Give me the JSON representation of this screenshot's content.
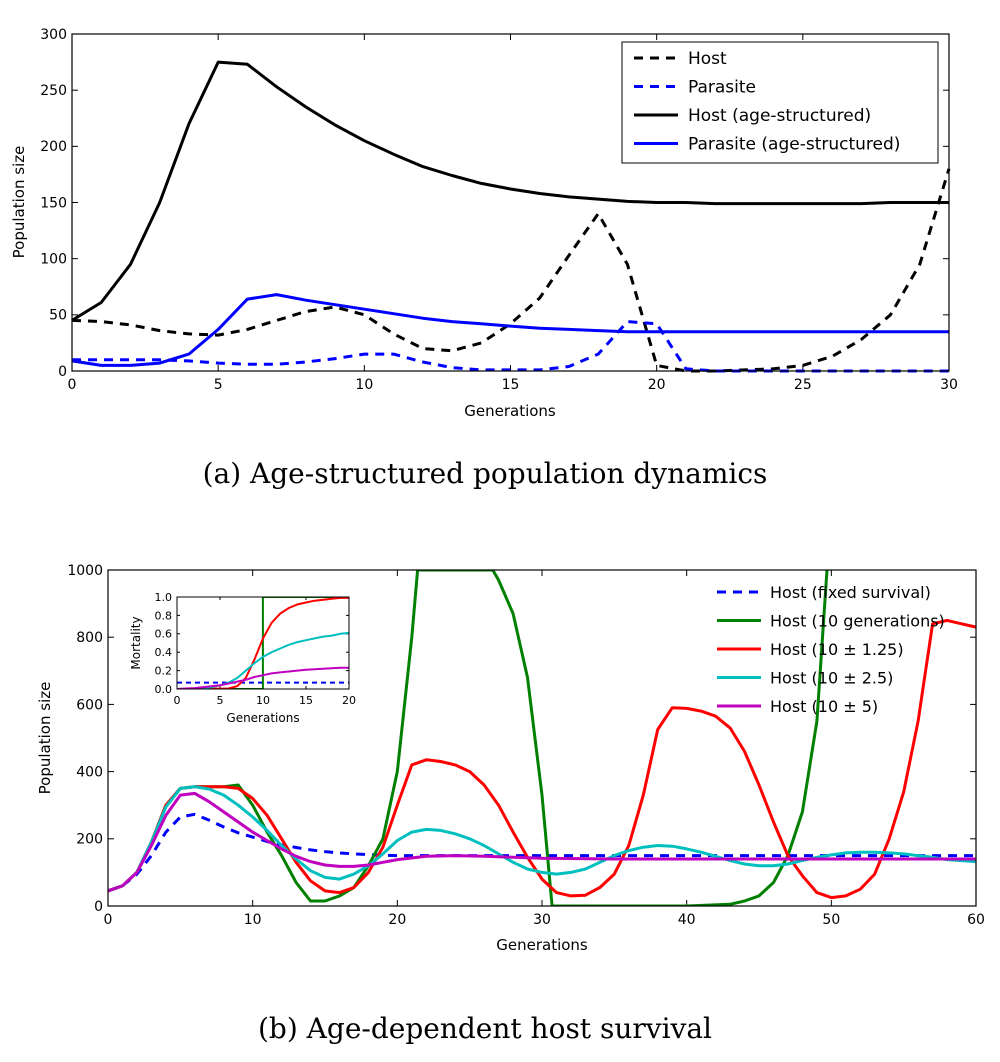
{
  "chart_data": [
    {
      "id": "a",
      "type": "line",
      "caption": "(a) Age-structured population dynamics",
      "xlabel": "Generations",
      "ylabel": "Population size",
      "xlim": [
        0,
        30
      ],
      "ylim": [
        0,
        300
      ],
      "xticks": [
        "0",
        "5",
        "10",
        "15",
        "20",
        "25",
        "30"
      ],
      "yticks": [
        "0",
        "50",
        "100",
        "150",
        "200",
        "250",
        "300"
      ],
      "legend_position": "top-right",
      "series": [
        {
          "name": "Host",
          "color": "#000000",
          "style": "dashed",
          "x": [
            0,
            1,
            2,
            3,
            4,
            5,
            6,
            7,
            8,
            9,
            10,
            11,
            12,
            13,
            14,
            15,
            16,
            17,
            18,
            19,
            20,
            21,
            22,
            23,
            24,
            25,
            26,
            27,
            28,
            29,
            30
          ],
          "y": [
            45,
            44,
            41,
            36,
            33,
            32,
            37,
            45,
            53,
            57,
            50,
            33,
            20,
            18,
            25,
            42,
            65,
            103,
            140,
            95,
            5,
            0,
            0,
            1,
            2,
            5,
            13,
            28,
            50,
            95,
            180
          ]
        },
        {
          "name": "Parasite",
          "color": "#0000ff",
          "style": "dashed",
          "x": [
            0,
            1,
            2,
            3,
            4,
            5,
            6,
            7,
            8,
            9,
            10,
            11,
            12,
            13,
            14,
            15,
            16,
            17,
            18,
            19,
            20,
            21,
            22,
            23,
            24,
            25,
            26,
            27,
            28,
            29,
            30
          ],
          "y": [
            10,
            10,
            10,
            10,
            9,
            7,
            6,
            6,
            8,
            11,
            15,
            15,
            8,
            3,
            1,
            1,
            1,
            4,
            15,
            44,
            42,
            2,
            0,
            0,
            0,
            0,
            0,
            0,
            0,
            0,
            0
          ]
        },
        {
          "name": "Host (age-structured)",
          "color": "#000000",
          "style": "solid",
          "x": [
            0,
            1,
            2,
            3,
            4,
            5,
            6,
            7,
            8,
            9,
            10,
            11,
            12,
            13,
            14,
            15,
            16,
            17,
            18,
            19,
            20,
            21,
            22,
            23,
            24,
            25,
            26,
            27,
            28,
            29,
            30
          ],
          "y": [
            45,
            61,
            95,
            150,
            220,
            275,
            273,
            253,
            235,
            219,
            205,
            193,
            182,
            174,
            167,
            162,
            158,
            155,
            153,
            151,
            150,
            150,
            149,
            149,
            149,
            149,
            149,
            149,
            150,
            150,
            150
          ]
        },
        {
          "name": "Parasite (age-structured)",
          "color": "#0000ff",
          "style": "solid",
          "x": [
            0,
            1,
            2,
            3,
            4,
            5,
            6,
            7,
            8,
            9,
            10,
            11,
            12,
            13,
            14,
            15,
            16,
            17,
            18,
            19,
            20,
            21,
            22,
            23,
            24,
            25,
            26,
            27,
            28,
            29,
            30
          ],
          "y": [
            9,
            5,
            5,
            7,
            15,
            37,
            64,
            68,
            63,
            59,
            55,
            51,
            47,
            44,
            42,
            40,
            38,
            37,
            36,
            35,
            35,
            35,
            35,
            35,
            35,
            35,
            35,
            35,
            35,
            35,
            35
          ]
        }
      ]
    },
    {
      "id": "b",
      "type": "line",
      "caption": "(b) Age-dependent host survival",
      "xlabel": "Generations",
      "ylabel": "Population size",
      "xlim": [
        0,
        60
      ],
      "ylim": [
        0,
        1000
      ],
      "xticks": [
        "0",
        "10",
        "20",
        "30",
        "40",
        "50",
        "60"
      ],
      "yticks": [
        "0",
        "200",
        "400",
        "600",
        "800",
        "1000"
      ],
      "legend_position": "top-right",
      "series": [
        {
          "name": "Host (fixed survival)",
          "color": "#0000ff",
          "style": "dashed",
          "x": [
            0,
            1,
            2,
            3,
            4,
            5,
            6,
            7,
            8,
            9,
            10,
            11,
            12,
            13,
            14,
            15,
            16,
            17,
            18,
            19,
            20,
            22,
            24,
            26,
            28,
            30,
            35,
            40,
            45,
            50,
            55,
            60
          ],
          "y": [
            45,
            60,
            95,
            150,
            220,
            265,
            273,
            255,
            235,
            218,
            205,
            192,
            182,
            174,
            167,
            162,
            158,
            155,
            153,
            151,
            150,
            150,
            150,
            150,
            150,
            150,
            150,
            150,
            150,
            150,
            150,
            150
          ]
        },
        {
          "name": "Host (10 generations)",
          "color": "#008000",
          "style": "solid",
          "x": [
            0,
            1,
            2,
            3,
            4,
            5,
            6,
            7,
            8,
            9,
            10,
            11,
            12,
            13,
            14,
            15,
            16,
            17,
            18,
            19,
            20,
            21,
            21.4,
            26.6,
            27,
            28,
            29,
            30,
            30.7,
            31,
            40,
            43,
            44,
            45,
            46,
            47,
            48,
            49,
            49.7
          ],
          "y": [
            45,
            60,
            100,
            190,
            300,
            350,
            355,
            355,
            355,
            360,
            300,
            220,
            150,
            70,
            15,
            15,
            30,
            55,
            120,
            200,
            400,
            800,
            1000,
            1000,
            970,
            870,
            680,
            330,
            0,
            0,
            0,
            5,
            15,
            30,
            70,
            150,
            280,
            550,
            1000
          ]
        },
        {
          "name": "Host (10 ± 1.25)",
          "color": "#ff0000",
          "style": "solid",
          "x": [
            0,
            1,
            2,
            3,
            4,
            5,
            6,
            7,
            8,
            9,
            10,
            11,
            12,
            13,
            14,
            15,
            16,
            17,
            18,
            19,
            20,
            21,
            22,
            23,
            24,
            25,
            26,
            27,
            28,
            29,
            30,
            31,
            32,
            33,
            34,
            35,
            36,
            37,
            38,
            39,
            40,
            41,
            42,
            43,
            44,
            45,
            46,
            47,
            48,
            49,
            50,
            51,
            52,
            53,
            54,
            55,
            56,
            57,
            58,
            59,
            60
          ],
          "y": [
            45,
            60,
            100,
            190,
            300,
            350,
            355,
            355,
            355,
            350,
            320,
            270,
            200,
            130,
            75,
            45,
            40,
            55,
            100,
            175,
            300,
            420,
            435,
            430,
            420,
            400,
            360,
            300,
            220,
            145,
            80,
            40,
            30,
            32,
            55,
            95,
            180,
            330,
            525,
            590,
            588,
            580,
            565,
            530,
            460,
            360,
            250,
            150,
            90,
            40,
            25,
            30,
            50,
            95,
            200,
            340,
            550,
            840,
            850,
            840,
            830
          ]
        },
        {
          "name": "Host (10 ± 2.5)",
          "color": "#00bfbf",
          "style": "solid",
          "x": [
            0,
            1,
            2,
            3,
            4,
            5,
            6,
            7,
            8,
            9,
            10,
            11,
            12,
            13,
            14,
            15,
            16,
            17,
            18,
            19,
            20,
            21,
            22,
            23,
            24,
            25,
            26,
            27,
            28,
            29,
            30,
            31,
            32,
            33,
            34,
            35,
            36,
            37,
            38,
            39,
            40,
            41,
            42,
            43,
            44,
            45,
            46,
            47,
            48,
            49,
            50,
            51,
            52,
            53,
            54,
            55,
            56,
            57,
            58,
            59,
            60
          ],
          "y": [
            45,
            60,
            100,
            190,
            295,
            350,
            355,
            348,
            330,
            300,
            265,
            225,
            180,
            140,
            105,
            85,
            80,
            95,
            120,
            155,
            195,
            220,
            228,
            225,
            215,
            200,
            180,
            155,
            130,
            110,
            100,
            95,
            100,
            110,
            130,
            150,
            165,
            175,
            180,
            178,
            170,
            160,
            148,
            135,
            125,
            120,
            120,
            125,
            135,
            145,
            152,
            158,
            160,
            160,
            158,
            155,
            150,
            145,
            138,
            135,
            132
          ]
        },
        {
          "name": "Host (10 ± 5)",
          "color": "#bf00bf",
          "style": "solid",
          "x": [
            0,
            1,
            2,
            3,
            4,
            5,
            6,
            7,
            8,
            9,
            10,
            11,
            12,
            13,
            14,
            15,
            16,
            17,
            18,
            19,
            20,
            22,
            24,
            26,
            28,
            30,
            35,
            40,
            45,
            50,
            55,
            60
          ],
          "y": [
            45,
            60,
            100,
            180,
            270,
            330,
            335,
            310,
            280,
            250,
            220,
            195,
            170,
            148,
            132,
            122,
            118,
            118,
            122,
            130,
            138,
            148,
            150,
            148,
            145,
            142,
            140,
            140,
            140,
            140,
            140,
            140
          ]
        }
      ],
      "inset": {
        "type": "line",
        "xlabel": "Generations",
        "ylabel": "Mortality",
        "xlim": [
          0,
          20
        ],
        "ylim": [
          0,
          1
        ],
        "xticks": [
          "0",
          "5",
          "10",
          "15",
          "20"
        ],
        "yticks": [
          "0.0",
          "0.2",
          "0.4",
          "0.6",
          "0.8",
          "1.0"
        ],
        "series": [
          {
            "name": "Host (fixed survival)",
            "color": "#0000ff",
            "style": "dashed",
            "x": [
              0,
              20
            ],
            "y": [
              0.07,
              0.07
            ]
          },
          {
            "name": "Host (10 generations)",
            "color": "#008000",
            "style": "solid",
            "x": [
              0,
              9.99,
              9.99,
              10,
              20
            ],
            "y": [
              0,
              0,
              1,
              1,
              1
            ]
          },
          {
            "name": "Host (10 ± 1.25)",
            "color": "#ff0000",
            "style": "solid",
            "x": [
              0,
              6,
              7,
              8,
              9,
              10,
              11,
              12,
              13,
              14,
              15,
              16,
              17,
              18,
              19,
              20
            ],
            "y": [
              0,
              0.005,
              0.03,
              0.12,
              0.32,
              0.55,
              0.72,
              0.82,
              0.88,
              0.92,
              0.94,
              0.96,
              0.97,
              0.98,
              0.99,
              0.99
            ]
          },
          {
            "name": "Host (10 ± 2.5)",
            "color": "#00bfbf",
            "style": "solid",
            "x": [
              0,
              2,
              4,
              5,
              6,
              7,
              8,
              9,
              10,
              11,
              12,
              13,
              14,
              15,
              16,
              17,
              18,
              19,
              20
            ],
            "y": [
              0,
              0.005,
              0.02,
              0.04,
              0.07,
              0.12,
              0.2,
              0.28,
              0.35,
              0.4,
              0.44,
              0.48,
              0.51,
              0.53,
              0.55,
              0.57,
              0.58,
              0.6,
              0.61
            ]
          },
          {
            "name": "Host (10 ± 5)",
            "color": "#bf00bf",
            "style": "solid",
            "x": [
              0,
              1,
              2,
              3,
              4,
              5,
              6,
              7,
              8,
              9,
              10,
              11,
              12,
              13,
              14,
              15,
              16,
              17,
              18,
              19,
              20
            ],
            "y": [
              0,
              0.005,
              0.01,
              0.02,
              0.03,
              0.04,
              0.06,
              0.08,
              0.1,
              0.13,
              0.15,
              0.17,
              0.18,
              0.19,
              0.2,
              0.21,
              0.215,
              0.22,
              0.225,
              0.23,
              0.23
            ]
          }
        ]
      }
    }
  ]
}
